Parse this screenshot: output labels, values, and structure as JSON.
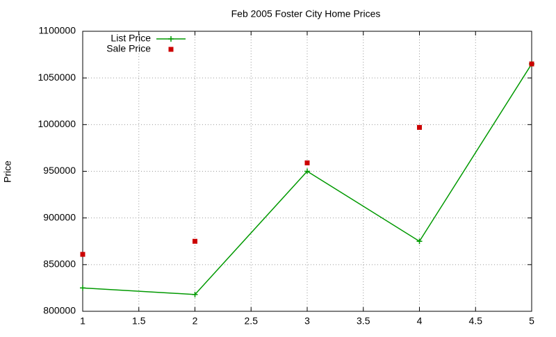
{
  "chart_data": {
    "type": "line",
    "title": "Feb 2005 Foster City Home Prices",
    "y_label": "Price",
    "x": [
      1,
      2,
      3,
      4,
      5
    ],
    "series": [
      {
        "name": "List Price",
        "color": "#009900",
        "mode": "lines+markers",
        "values": [
          825000,
          818000,
          950000,
          875000,
          1065000
        ]
      },
      {
        "name": "Sale Price",
        "color": "#cc0000",
        "mode": "markers",
        "values": [
          861000,
          875000,
          959000,
          997000,
          1065000
        ]
      }
    ],
    "xlim": [
      1,
      5
    ],
    "xticks": [
      1,
      1.5,
      2,
      2.5,
      3,
      3.5,
      4,
      4.5,
      5
    ],
    "ylim": [
      800000,
      1100000
    ],
    "yticks": [
      800000,
      850000,
      900000,
      950000,
      1000000,
      1050000,
      1100000
    ],
    "grid": true,
    "legend": "top-left"
  }
}
